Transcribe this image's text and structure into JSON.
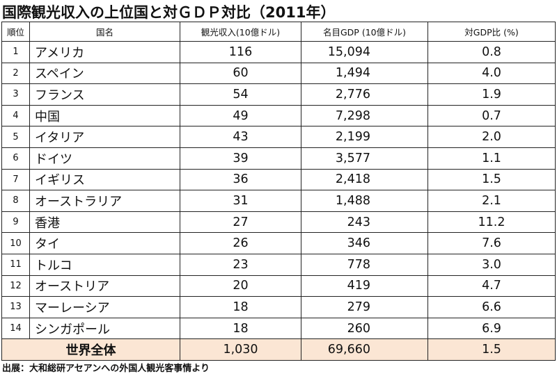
{
  "title": "国際観光収入の上位国と対ＧＤＰ対比（2011年）",
  "table": {
    "headers": {
      "rank": "順位",
      "country": "国名",
      "tourism": "観光収入(10億ドル)",
      "gdp": "名目GDP (10億ドル)",
      "ratio": "対GDP比 (%)"
    },
    "rows": [
      {
        "rank": "1",
        "country": "アメリカ",
        "tourism": "116",
        "gdp": "15,094",
        "ratio": "0.8"
      },
      {
        "rank": "2",
        "country": "スペイン",
        "tourism": "60",
        "gdp": "1,494",
        "ratio": "4.0"
      },
      {
        "rank": "3",
        "country": "フランス",
        "tourism": "54",
        "gdp": "2,776",
        "ratio": "1.9"
      },
      {
        "rank": "4",
        "country": "中国",
        "tourism": "49",
        "gdp": "7,298",
        "ratio": "0.7"
      },
      {
        "rank": "5",
        "country": "イタリア",
        "tourism": "43",
        "gdp": "2,199",
        "ratio": "2.0"
      },
      {
        "rank": "6",
        "country": "ドイツ",
        "tourism": "39",
        "gdp": "3,577",
        "ratio": "1.1"
      },
      {
        "rank": "7",
        "country": "イギリス",
        "tourism": "36",
        "gdp": "2,418",
        "ratio": "1.5"
      },
      {
        "rank": "8",
        "country": "オーストラリア",
        "tourism": "31",
        "gdp": "1,488",
        "ratio": "2.1"
      },
      {
        "rank": "9",
        "country": "香港",
        "tourism": "27",
        "gdp": "243",
        "ratio": "11.2"
      },
      {
        "rank": "10",
        "country": "タイ",
        "tourism": "26",
        "gdp": "346",
        "ratio": "7.6"
      },
      {
        "rank": "11",
        "country": "トルコ",
        "tourism": "23",
        "gdp": "778",
        "ratio": "3.0"
      },
      {
        "rank": "12",
        "country": "オーストリア",
        "tourism": "20",
        "gdp": "419",
        "ratio": "4.7"
      },
      {
        "rank": "13",
        "country": "マーレーシア",
        "tourism": "18",
        "gdp": "279",
        "ratio": "6.6"
      },
      {
        "rank": "14",
        "country": "シンガポール",
        "tourism": "18",
        "gdp": "260",
        "ratio": "6.9"
      }
    ],
    "total": {
      "label": "世界全体",
      "tourism": "1,030",
      "gdp": "69,660",
      "ratio": "1.5"
    }
  },
  "source": "出展：大和総研アセアンへの外国人観光客事情より",
  "colors": {
    "total_row_bg": "#fbe6d4",
    "border": "#222222"
  }
}
